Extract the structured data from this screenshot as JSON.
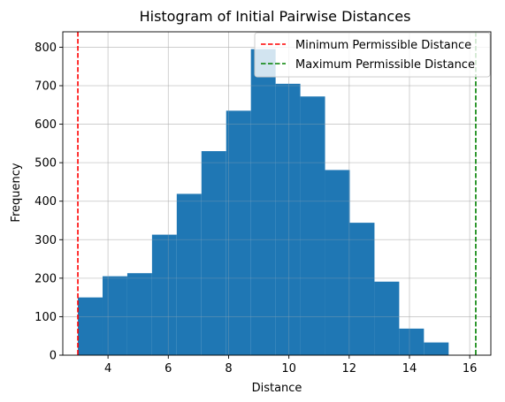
{
  "chart_data": {
    "type": "bar",
    "title": "Histogram of Initial Pairwise Distances",
    "xlabel": "Distance",
    "ylabel": "Frequency",
    "xlim": [
      2.5,
      16.7
    ],
    "ylim": [
      0,
      840
    ],
    "grid": true,
    "x_ticks": [
      4,
      6,
      8,
      10,
      12,
      14,
      16
    ],
    "y_ticks": [
      0,
      100,
      200,
      300,
      400,
      500,
      600,
      700,
      800
    ],
    "bin_edges": [
      3.0,
      3.82,
      4.64,
      5.46,
      6.28,
      7.1,
      7.92,
      8.74,
      9.56,
      10.38,
      11.2,
      12.02,
      12.84,
      13.66,
      14.48,
      15.3
    ],
    "counts": [
      150,
      205,
      213,
      313,
      419,
      530,
      635,
      795,
      705,
      672,
      481,
      344,
      191,
      69,
      33
    ],
    "bar_color": "#1f77b4",
    "vlines": [
      {
        "name": "Minimum Permissible Distance",
        "x": 3.0,
        "color": "#ff0000",
        "style": "dashed"
      },
      {
        "name": "Maximum Permissible Distance",
        "x": 16.2,
        "color": "#008000",
        "style": "dashed"
      }
    ],
    "legend_position": "top-right"
  }
}
